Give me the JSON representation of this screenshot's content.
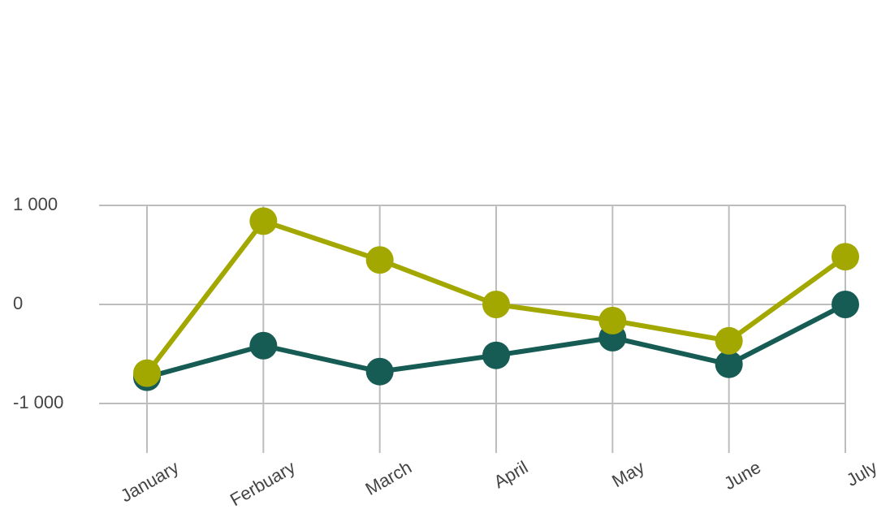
{
  "chart_data": {
    "type": "line",
    "categories": [
      "January",
      "Ferbuary",
      "March",
      "April",
      "May",
      "June",
      "July"
    ],
    "series": [
      {
        "color": "#175c54",
        "values": [
          -735,
          -416,
          -678,
          -514,
          -335,
          -604,
          0
        ]
      },
      {
        "color": "#a3a800",
        "values": [
          -694,
          841,
          449,
          0,
          -163,
          -367,
          482
        ]
      }
    ],
    "ylim": [
      -1500,
      1000
    ],
    "yticks": [
      {
        "value": 1000,
        "label": "1 000"
      },
      0,
      {
        "value": -1000,
        "label": "-1 000"
      }
    ],
    "grid": true
  }
}
